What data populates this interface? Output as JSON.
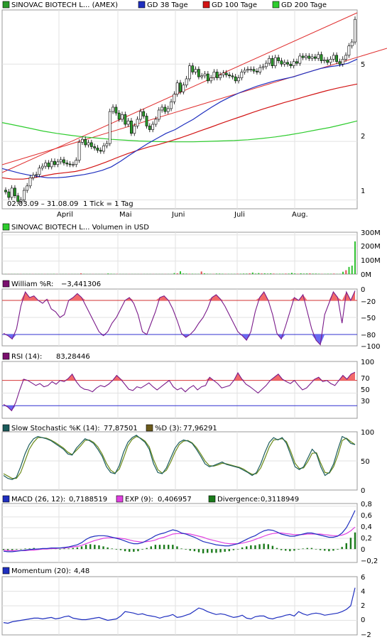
{
  "chart_data": [
    {
      "type": "candlestick",
      "title": "",
      "legend": [
        {
          "label": "SINOVAC BIOTECH L... (AMEX)",
          "color": "#2a9a2a"
        },
        {
          "label": "GD 38 Tage",
          "color": "#1f2fbf"
        },
        {
          "label": "GD 100 Tage",
          "color": "#d21414"
        },
        {
          "label": "GD 200 Tage",
          "color": "#2ecc2e"
        }
      ],
      "date_range": "02.03.09 – 31.08.09",
      "tick_info": "1 Tick = 1 Tag",
      "x_ticks": [
        "April",
        "Mai",
        "Juni",
        "Juli",
        "Aug."
      ],
      "y_ticks": [
        "1",
        "2",
        "5"
      ],
      "y_scale": "log",
      "ylim": [
        0.9,
        9.5
      ],
      "price_close": [
        1.1,
        1.03,
        1.15,
        1.05,
        0.98,
        1.0,
        1.12,
        1.18,
        1.3,
        1.34,
        1.35,
        1.46,
        1.49,
        1.55,
        1.48,
        1.58,
        1.52,
        1.57,
        1.61,
        1.55,
        1.53,
        1.52,
        1.52,
        1.6,
        1.98,
        2.05,
        1.92,
        1.97,
        1.88,
        1.85,
        1.8,
        1.78,
        1.9,
        1.95,
        2.85,
        3.0,
        2.8,
        2.6,
        2.75,
        2.45,
        2.55,
        2.2,
        2.4,
        2.6,
        2.85,
        2.7,
        2.4,
        2.3,
        2.45,
        2.6,
        2.9,
        3.0,
        2.85,
        2.95,
        3.2,
        3.5,
        4.0,
        3.6,
        3.9,
        4.2,
        4.9,
        4.55,
        4.7,
        4.3,
        4.35,
        4.45,
        4.1,
        4.25,
        4.55,
        4.25,
        4.4,
        4.5,
        4.4,
        4.35,
        4.3,
        4.1,
        4.25,
        4.55,
        4.65,
        4.7,
        4.7,
        4.6,
        4.55,
        4.8,
        4.85,
        5.05,
        5.35,
        4.9,
        5.4,
        5.2,
        5.0,
        5.1,
        5.0,
        4.9,
        5.15,
        5.05,
        5.5,
        5.4,
        5.5,
        5.35,
        5.45,
        5.35,
        5.6,
        5.2,
        5.25,
        5.1,
        5.3,
        5.55,
        5.15,
        5.0,
        5.3,
        5.55,
        6.2,
        6.5,
        8.5
      ],
      "ma38": [
        1.45,
        1.41,
        1.37,
        1.34,
        1.32,
        1.3,
        1.3,
        1.31,
        1.33,
        1.35,
        1.38,
        1.42,
        1.48,
        1.58,
        1.7,
        1.82,
        1.95,
        2.07,
        2.2,
        2.3,
        2.45,
        2.6,
        2.8,
        3.0,
        3.2,
        3.38,
        3.55,
        3.7,
        3.85,
        3.98,
        4.1,
        4.2,
        4.3,
        4.45,
        4.6,
        4.75,
        4.85,
        4.92,
        5.05,
        5.3
      ],
      "ma100": [
        1.3,
        1.28,
        1.28,
        1.3,
        1.33,
        1.36,
        1.38,
        1.4,
        1.44,
        1.5,
        1.57,
        1.65,
        1.73,
        1.8,
        1.87,
        1.93,
        2.0,
        2.08,
        2.17,
        2.27,
        2.37,
        2.48,
        2.59,
        2.7,
        2.82,
        2.94,
        3.05,
        3.17,
        3.28,
        3.4,
        3.52,
        3.64,
        3.75,
        3.85,
        3.95
      ],
      "ma200": [
        2.5,
        2.42,
        2.34,
        2.26,
        2.2,
        2.15,
        2.11,
        2.08,
        2.05,
        2.03,
        2.01,
        2.0,
        1.99,
        1.99,
        1.99,
        2.0,
        2.01,
        2.02,
        2.04,
        2.07,
        2.11,
        2.16,
        2.22,
        2.29,
        2.36,
        2.45,
        2.55
      ]
    },
    {
      "type": "bar",
      "label": "SINOVAC BIOTECH L... Volumen in USD",
      "y_ticks": [
        "300M",
        "200M",
        "100M",
        "0M"
      ],
      "ylim": [
        0,
        320
      ],
      "values_m": [
        1,
        1,
        1,
        1,
        1,
        1,
        1,
        1,
        1,
        1,
        1,
        1,
        1,
        1,
        1,
        1,
        2,
        1,
        1,
        1,
        1,
        1,
        1,
        1,
        1,
        6,
        2,
        1,
        1,
        1,
        1,
        1,
        1,
        1,
        5,
        3,
        2,
        2,
        1,
        1,
        1,
        1,
        1,
        1,
        1,
        1,
        1,
        1,
        1,
        1,
        1,
        1,
        1,
        1,
        1,
        1,
        8,
        6,
        22,
        5,
        4,
        3,
        3,
        2,
        2,
        20,
        6,
        3,
        2,
        2,
        4,
        4,
        3,
        2,
        2,
        2,
        2,
        3,
        3,
        4,
        4,
        6,
        12,
        4,
        8,
        5,
        6,
        4,
        6,
        4,
        2,
        3,
        3,
        4,
        4,
        10,
        5,
        3,
        6,
        4,
        5,
        6,
        4,
        4,
        3,
        2,
        2,
        3,
        3,
        4,
        2,
        2,
        18,
        30,
        55,
        65,
        250
      ]
    },
    {
      "type": "line",
      "label": "William %R:",
      "value": "−3,441306",
      "y_ticks": [
        "0",
        "−20",
        "−50",
        "−80",
        "−100"
      ],
      "ylim": [
        -100,
        0
      ],
      "upper_level": -20,
      "lower_level": -80,
      "values": [
        -78,
        -82,
        -88,
        -70,
        -30,
        -5,
        -15,
        -12,
        -20,
        -25,
        -18,
        -35,
        -40,
        -50,
        -45,
        -20,
        -15,
        -8,
        -15,
        -30,
        -45,
        -60,
        -75,
        -82,
        -75,
        -60,
        -50,
        -35,
        -20,
        -15,
        -25,
        -45,
        -75,
        -80,
        -60,
        -40,
        -15,
        -12,
        -20,
        -35,
        -55,
        -78,
        -85,
        -80,
        -72,
        -60,
        -50,
        -35,
        -15,
        -10,
        -18,
        -30,
        -45,
        -60,
        -75,
        -82,
        -90,
        -75,
        -40,
        -15,
        -5,
        -20,
        -45,
        -78,
        -88,
        -65,
        -40,
        -15,
        -20,
        -10,
        -40,
        -70,
        -90,
        -98,
        -45,
        -25,
        -5,
        -15,
        -60,
        -5,
        -20,
        -3
      ]
    },
    {
      "type": "line",
      "label": "RSI (14):",
      "value": "83,28446",
      "y_ticks": [
        "100",
        "70",
        "50",
        "30"
      ],
      "ylim": [
        10,
        100
      ],
      "upper_level": 70,
      "lower_level": 30,
      "values": [
        32,
        28,
        22,
        35,
        55,
        72,
        70,
        66,
        62,
        65,
        60,
        62,
        68,
        64,
        70,
        68,
        73,
        80,
        68,
        60,
        56,
        55,
        52,
        58,
        62,
        60,
        64,
        70,
        78,
        72,
        64,
        56,
        54,
        60,
        58,
        62,
        66,
        60,
        55,
        60,
        65,
        70,
        60,
        55,
        58,
        52,
        58,
        62,
        55,
        60,
        62,
        75,
        70,
        65,
        58,
        60,
        62,
        70,
        82,
        72,
        64,
        60,
        55,
        50,
        56,
        62,
        70,
        75,
        80,
        72,
        68,
        65,
        70,
        62,
        55,
        58,
        65,
        72,
        75,
        68,
        70,
        65,
        62,
        70,
        78,
        72,
        80,
        83
      ]
    },
    {
      "type": "line",
      "label": "Slow Stochastic %K (14):",
      "value": "77,87501",
      "label2": "%D (3):",
      "value2": "77,96291",
      "y_ticks": [
        "100",
        "50",
        "0"
      ],
      "ylim": [
        0,
        100
      ],
      "k": [
        25,
        20,
        18,
        22,
        40,
        62,
        78,
        88,
        92,
        90,
        88,
        85,
        80,
        75,
        70,
        62,
        60,
        72,
        80,
        88,
        85,
        80,
        70,
        58,
        40,
        30,
        28,
        42,
        65,
        82,
        90,
        94,
        88,
        82,
        70,
        45,
        30,
        28,
        38,
        55,
        72,
        82,
        86,
        84,
        80,
        70,
        58,
        45,
        40,
        42,
        45,
        48,
        44,
        42,
        40,
        38,
        34,
        30,
        25,
        30,
        45,
        65,
        82,
        90,
        86,
        90,
        80,
        60,
        40,
        35,
        40,
        55,
        70,
        62,
        40,
        25,
        30,
        45,
        70,
        92,
        88,
        80,
        78
      ],
      "d": [
        28,
        24,
        20,
        20,
        30,
        50,
        70,
        82,
        90,
        90,
        89,
        86,
        82,
        77,
        72,
        65,
        61,
        68,
        76,
        85,
        86,
        82,
        74,
        62,
        46,
        34,
        29,
        36,
        55,
        76,
        87,
        92,
        89,
        84,
        74,
        52,
        35,
        29,
        34,
        48,
        65,
        78,
        84,
        85,
        81,
        73,
        62,
        50,
        42,
        41,
        43,
        46,
        45,
        43,
        41,
        39,
        36,
        31,
        27,
        28,
        38,
        55,
        74,
        86,
        87,
        88,
        83,
        66,
        46,
        37,
        38,
        49,
        63,
        64,
        46,
        30,
        29,
        40,
        60,
        85,
        89,
        83,
        78
      ]
    },
    {
      "type": "line",
      "label": "MACD (26, 12):",
      "value": "0,7188519",
      "label2": "EXP (9):",
      "value2": "0,406957",
      "label3": "Divergence:",
      "value3": "0,3118949",
      "y_ticks": [
        "0,8",
        "0,6",
        "0,4",
        "0,2",
        "0",
        "−0,2"
      ],
      "ylim": [
        -0.25,
        0.85
      ],
      "macd": [
        -0.04,
        -0.05,
        -0.05,
        -0.04,
        -0.03,
        -0.02,
        -0.01,
        0.0,
        0.0,
        0.01,
        0.01,
        0.02,
        0.02,
        0.02,
        0.03,
        0.04,
        0.06,
        0.08,
        0.12,
        0.18,
        0.22,
        0.24,
        0.25,
        0.25,
        0.24,
        0.22,
        0.2,
        0.18,
        0.15,
        0.12,
        0.1,
        0.1,
        0.12,
        0.16,
        0.2,
        0.25,
        0.28,
        0.3,
        0.33,
        0.36,
        0.34,
        0.3,
        0.28,
        0.25,
        0.22,
        0.18,
        0.14,
        0.12,
        0.1,
        0.08,
        0.07,
        0.06,
        0.06,
        0.08,
        0.1,
        0.14,
        0.18,
        0.22,
        0.25,
        0.3,
        0.34,
        0.36,
        0.35,
        0.32,
        0.28,
        0.26,
        0.24,
        0.24,
        0.26,
        0.28,
        0.3,
        0.3,
        0.28,
        0.26,
        0.24,
        0.22,
        0.22,
        0.24,
        0.3,
        0.4,
        0.55,
        0.72
      ],
      "exp": [
        -0.02,
        -0.03,
        -0.03,
        -0.03,
        -0.03,
        -0.03,
        -0.02,
        -0.02,
        -0.01,
        0.0,
        0.0,
        0.01,
        0.01,
        0.02,
        0.02,
        0.03,
        0.04,
        0.05,
        0.07,
        0.1,
        0.13,
        0.16,
        0.18,
        0.2,
        0.21,
        0.21,
        0.21,
        0.2,
        0.19,
        0.17,
        0.15,
        0.14,
        0.13,
        0.14,
        0.15,
        0.17,
        0.2,
        0.22,
        0.25,
        0.28,
        0.29,
        0.29,
        0.29,
        0.28,
        0.26,
        0.24,
        0.22,
        0.19,
        0.17,
        0.15,
        0.13,
        0.11,
        0.1,
        0.1,
        0.1,
        0.11,
        0.13,
        0.15,
        0.18,
        0.21,
        0.24,
        0.27,
        0.29,
        0.3,
        0.3,
        0.29,
        0.28,
        0.27,
        0.27,
        0.27,
        0.28,
        0.28,
        0.28,
        0.28,
        0.27,
        0.26,
        0.25,
        0.25,
        0.26,
        0.29,
        0.34,
        0.41
      ],
      "divergence": [
        -0.02,
        -0.02,
        -0.02,
        -0.01,
        0.0,
        0.01,
        0.01,
        0.02,
        0.01,
        0.01,
        0.01,
        0.01,
        0.01,
        0.0,
        0.01,
        0.01,
        0.02,
        0.03,
        0.05,
        0.08,
        0.09,
        0.08,
        0.07,
        0.05,
        0.03,
        0.01,
        -0.01,
        -0.02,
        -0.04,
        -0.05,
        -0.05,
        -0.04,
        -0.01,
        0.02,
        0.05,
        0.08,
        0.08,
        0.08,
        0.08,
        0.08,
        0.05,
        0.01,
        -0.01,
        -0.03,
        -0.04,
        -0.06,
        -0.08,
        -0.07,
        -0.07,
        -0.07,
        -0.06,
        -0.05,
        -0.04,
        -0.02,
        0.0,
        0.03,
        0.05,
        0.07,
        0.07,
        0.09,
        0.1,
        0.09,
        0.06,
        0.02,
        -0.02,
        -0.03,
        -0.04,
        -0.03,
        -0.01,
        0.01,
        0.02,
        0.02,
        0.0,
        -0.02,
        -0.03,
        -0.04,
        -0.03,
        -0.01,
        0.04,
        0.11,
        0.21,
        0.31
      ]
    },
    {
      "type": "line",
      "label": "Momentum (20):",
      "value": "4,48",
      "y_ticks": [
        "6",
        "4",
        "2",
        "0",
        "−2"
      ],
      "ylim": [
        -2,
        6
      ],
      "values": [
        -0.3,
        -0.4,
        -0.2,
        -0.1,
        0.0,
        0.1,
        0.2,
        0.3,
        0.3,
        0.2,
        0.3,
        0.4,
        0.2,
        0.3,
        0.5,
        0.6,
        0.3,
        0.2,
        0.1,
        0.1,
        0.2,
        0.3,
        0.4,
        0.2,
        0.0,
        0.1,
        0.2,
        0.6,
        1.2,
        1.1,
        1.0,
        0.8,
        0.9,
        0.7,
        0.6,
        0.5,
        0.3,
        0.5,
        0.6,
        0.8,
        0.4,
        0.5,
        0.7,
        0.9,
        1.3,
        1.7,
        1.5,
        1.2,
        1.0,
        0.8,
        0.9,
        0.8,
        0.6,
        0.4,
        0.5,
        0.7,
        0.3,
        0.2,
        0.5,
        0.6,
        0.6,
        0.3,
        0.2,
        0.4,
        0.5,
        0.7,
        0.8,
        0.6,
        1.2,
        0.9,
        0.7,
        0.9,
        1.0,
        0.9,
        0.7,
        0.8,
        0.9,
        1.0,
        1.2,
        1.5,
        2.0,
        4.48
      ]
    }
  ]
}
